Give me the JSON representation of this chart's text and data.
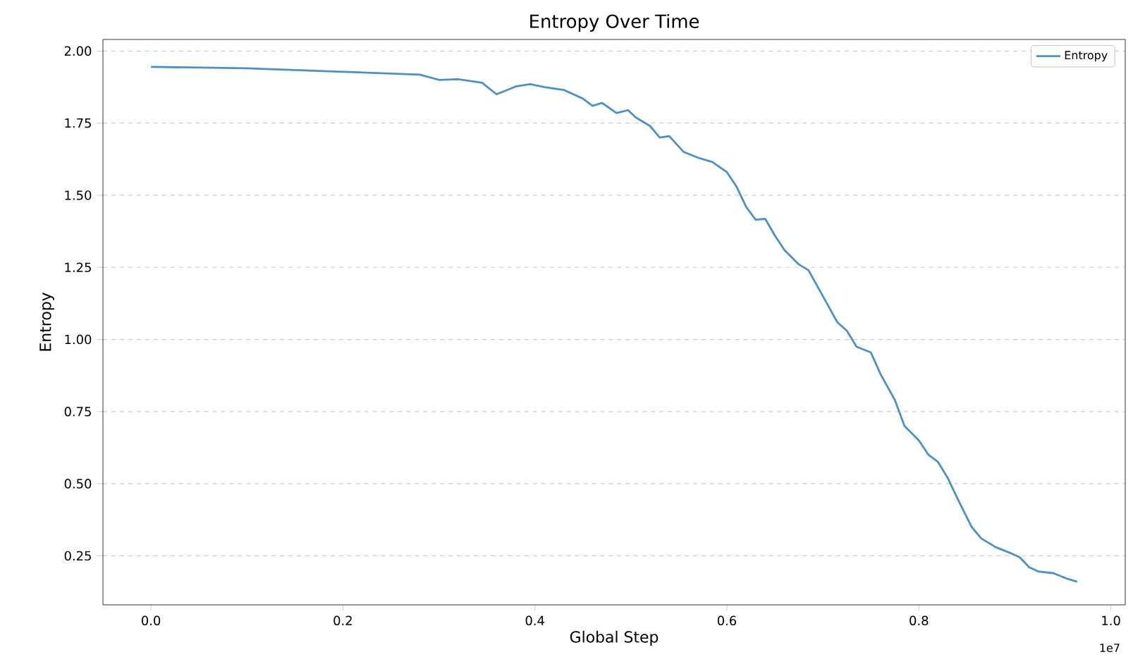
{
  "chart_data": {
    "type": "line",
    "title": "Entropy Over Time",
    "xlabel": "Global Step",
    "ylabel": "Entropy",
    "annotations": [
      "1e7"
    ],
    "x": [
      0,
      0.1,
      0.2,
      0.25,
      0.28,
      0.3,
      0.32,
      0.345,
      0.36,
      0.38,
      0.395,
      0.41,
      0.43,
      0.45,
      0.46,
      0.47,
      0.485,
      0.497,
      0.505,
      0.52,
      0.53,
      0.54,
      0.555,
      0.57,
      0.585,
      0.6,
      0.61,
      0.62,
      0.63,
      0.64,
      0.65,
      0.66,
      0.675,
      0.685,
      0.695,
      0.705,
      0.715,
      0.725,
      0.735,
      0.75,
      0.76,
      0.775,
      0.785,
      0.8,
      0.81,
      0.82,
      0.83,
      0.84,
      0.855,
      0.865,
      0.88,
      0.895,
      0.905,
      0.915,
      0.925,
      0.94,
      0.955,
      0.965
    ],
    "series": [
      {
        "name": "Entropy",
        "color": "#4c91c6",
        "values": [
          1.945,
          1.94,
          1.928,
          1.922,
          1.918,
          1.9,
          1.902,
          1.89,
          1.85,
          1.877,
          1.885,
          1.875,
          1.865,
          1.835,
          1.81,
          1.82,
          1.785,
          1.795,
          1.77,
          1.74,
          1.7,
          1.705,
          1.65,
          1.63,
          1.615,
          1.58,
          1.53,
          1.46,
          1.415,
          1.418,
          1.36,
          1.31,
          1.26,
          1.24,
          1.18,
          1.12,
          1.06,
          1.03,
          0.975,
          0.955,
          0.88,
          0.79,
          0.7,
          0.65,
          0.6,
          0.575,
          0.52,
          0.45,
          0.35,
          0.31,
          0.28,
          0.26,
          0.245,
          0.21,
          0.195,
          0.19,
          0.17,
          0.16
        ]
      }
    ],
    "xlim": [
      -0.05,
      1.015
    ],
    "ylim": [
      0.08,
      2.04
    ],
    "xticks": [
      {
        "value": 0,
        "label": "0.0"
      },
      0.2,
      0.4,
      0.6,
      0.8,
      {
        "value": 1,
        "label": "1.0"
      }
    ],
    "yticks": [
      {
        "value": 0.25,
        "label": "0.25"
      },
      {
        "value": 0.5,
        "label": "0.50"
      },
      {
        "value": 0.75,
        "label": "0.75"
      },
      {
        "value": 1.0,
        "label": "1.00"
      },
      {
        "value": 1.25,
        "label": "1.25"
      },
      {
        "value": 1.5,
        "label": "1.50"
      },
      {
        "value": 1.75,
        "label": "1.75"
      },
      {
        "value": 2.0,
        "label": "2.00"
      }
    ],
    "grid": "y",
    "legend": "top right",
    "marker": "none",
    "line_style": "solid"
  }
}
